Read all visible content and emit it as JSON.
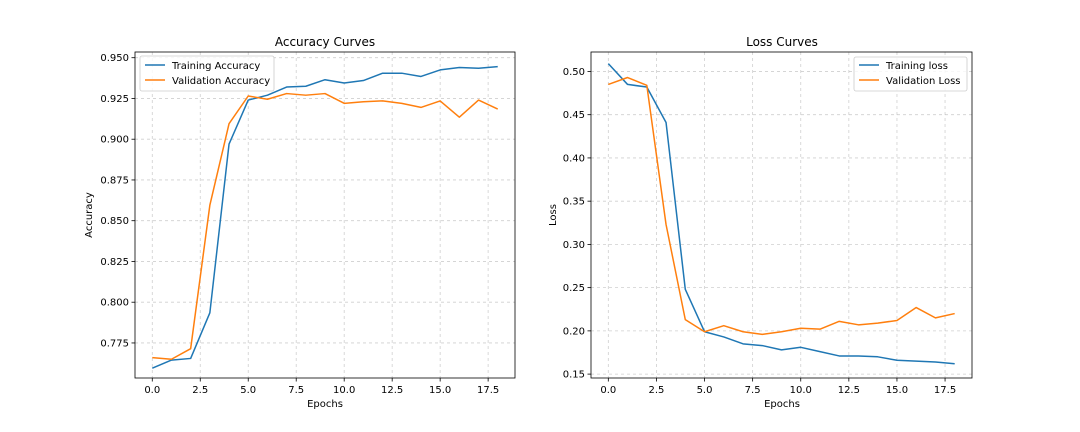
{
  "chart_data": [
    {
      "type": "line",
      "title": "Accuracy Curves",
      "xlabel": "Epochs",
      "ylabel": "Accuracy",
      "xlim": [
        -0.9,
        18.9
      ],
      "ylim": [
        0.7535,
        0.9535
      ],
      "xticks": [
        0.0,
        2.5,
        5.0,
        7.5,
        10.0,
        12.5,
        15.0,
        17.5
      ],
      "xtick_labels": [
        "0.0",
        "2.5",
        "5.0",
        "7.5",
        "10.0",
        "12.5",
        "15.0",
        "17.5"
      ],
      "yticks": [
        0.775,
        0.8,
        0.825,
        0.85,
        0.875,
        0.9,
        0.925,
        0.95
      ],
      "ytick_labels": [
        "0.775",
        "0.800",
        "0.825",
        "0.850",
        "0.875",
        "0.900",
        "0.925",
        "0.950"
      ],
      "grid": true,
      "legend_position": "upper-left",
      "x": [
        0,
        1,
        2,
        3,
        4,
        5,
        6,
        7,
        8,
        9,
        10,
        11,
        12,
        13,
        14,
        15,
        16,
        17,
        18
      ],
      "series": [
        {
          "name": "Training Accuracy",
          "color": "#1f77b4",
          "values": [
            0.7595,
            0.7645,
            0.7655,
            0.7935,
            0.897,
            0.924,
            0.927,
            0.932,
            0.9325,
            0.9365,
            0.9345,
            0.936,
            0.9405,
            0.9405,
            0.9385,
            0.9425,
            0.944,
            0.9435,
            0.9445
          ]
        },
        {
          "name": "Validation Accuracy",
          "color": "#ff7f0e",
          "values": [
            0.766,
            0.765,
            0.7715,
            0.8595,
            0.9095,
            0.9265,
            0.9245,
            0.928,
            0.927,
            0.928,
            0.922,
            0.923,
            0.9235,
            0.922,
            0.9195,
            0.9235,
            0.9135,
            0.924,
            0.9185
          ]
        }
      ]
    },
    {
      "type": "line",
      "title": "Loss Curves",
      "xlabel": "Epochs",
      "ylabel": "Loss",
      "xlim": [
        -0.9,
        18.9
      ],
      "ylim": [
        0.1455,
        0.5225
      ],
      "xticks": [
        0.0,
        2.5,
        5.0,
        7.5,
        10.0,
        12.5,
        15.0,
        17.5
      ],
      "xtick_labels": [
        "0.0",
        "2.5",
        "5.0",
        "7.5",
        "10.0",
        "12.5",
        "15.0",
        "17.5"
      ],
      "yticks": [
        0.15,
        0.2,
        0.25,
        0.3,
        0.35,
        0.4,
        0.45,
        0.5
      ],
      "ytick_labels": [
        "0.15",
        "0.20",
        "0.25",
        "0.30",
        "0.35",
        "0.40",
        "0.45",
        "0.50"
      ],
      "grid": true,
      "legend_position": "upper-right",
      "x": [
        0,
        1,
        2,
        3,
        4,
        5,
        6,
        7,
        8,
        9,
        10,
        11,
        12,
        13,
        14,
        15,
        16,
        17,
        18
      ],
      "series": [
        {
          "name": "Training loss",
          "color": "#1f77b4",
          "values": [
            0.509,
            0.485,
            0.482,
            0.441,
            0.248,
            0.199,
            0.193,
            0.185,
            0.183,
            0.178,
            0.181,
            0.176,
            0.171,
            0.171,
            0.17,
            0.166,
            0.165,
            0.164,
            0.162
          ]
        },
        {
          "name": "Validation Loss",
          "color": "#ff7f0e",
          "values": [
            0.485,
            0.493,
            0.484,
            0.323,
            0.213,
            0.199,
            0.206,
            0.199,
            0.196,
            0.199,
            0.203,
            0.202,
            0.211,
            0.207,
            0.209,
            0.212,
            0.227,
            0.215,
            0.22
          ]
        }
      ]
    }
  ]
}
